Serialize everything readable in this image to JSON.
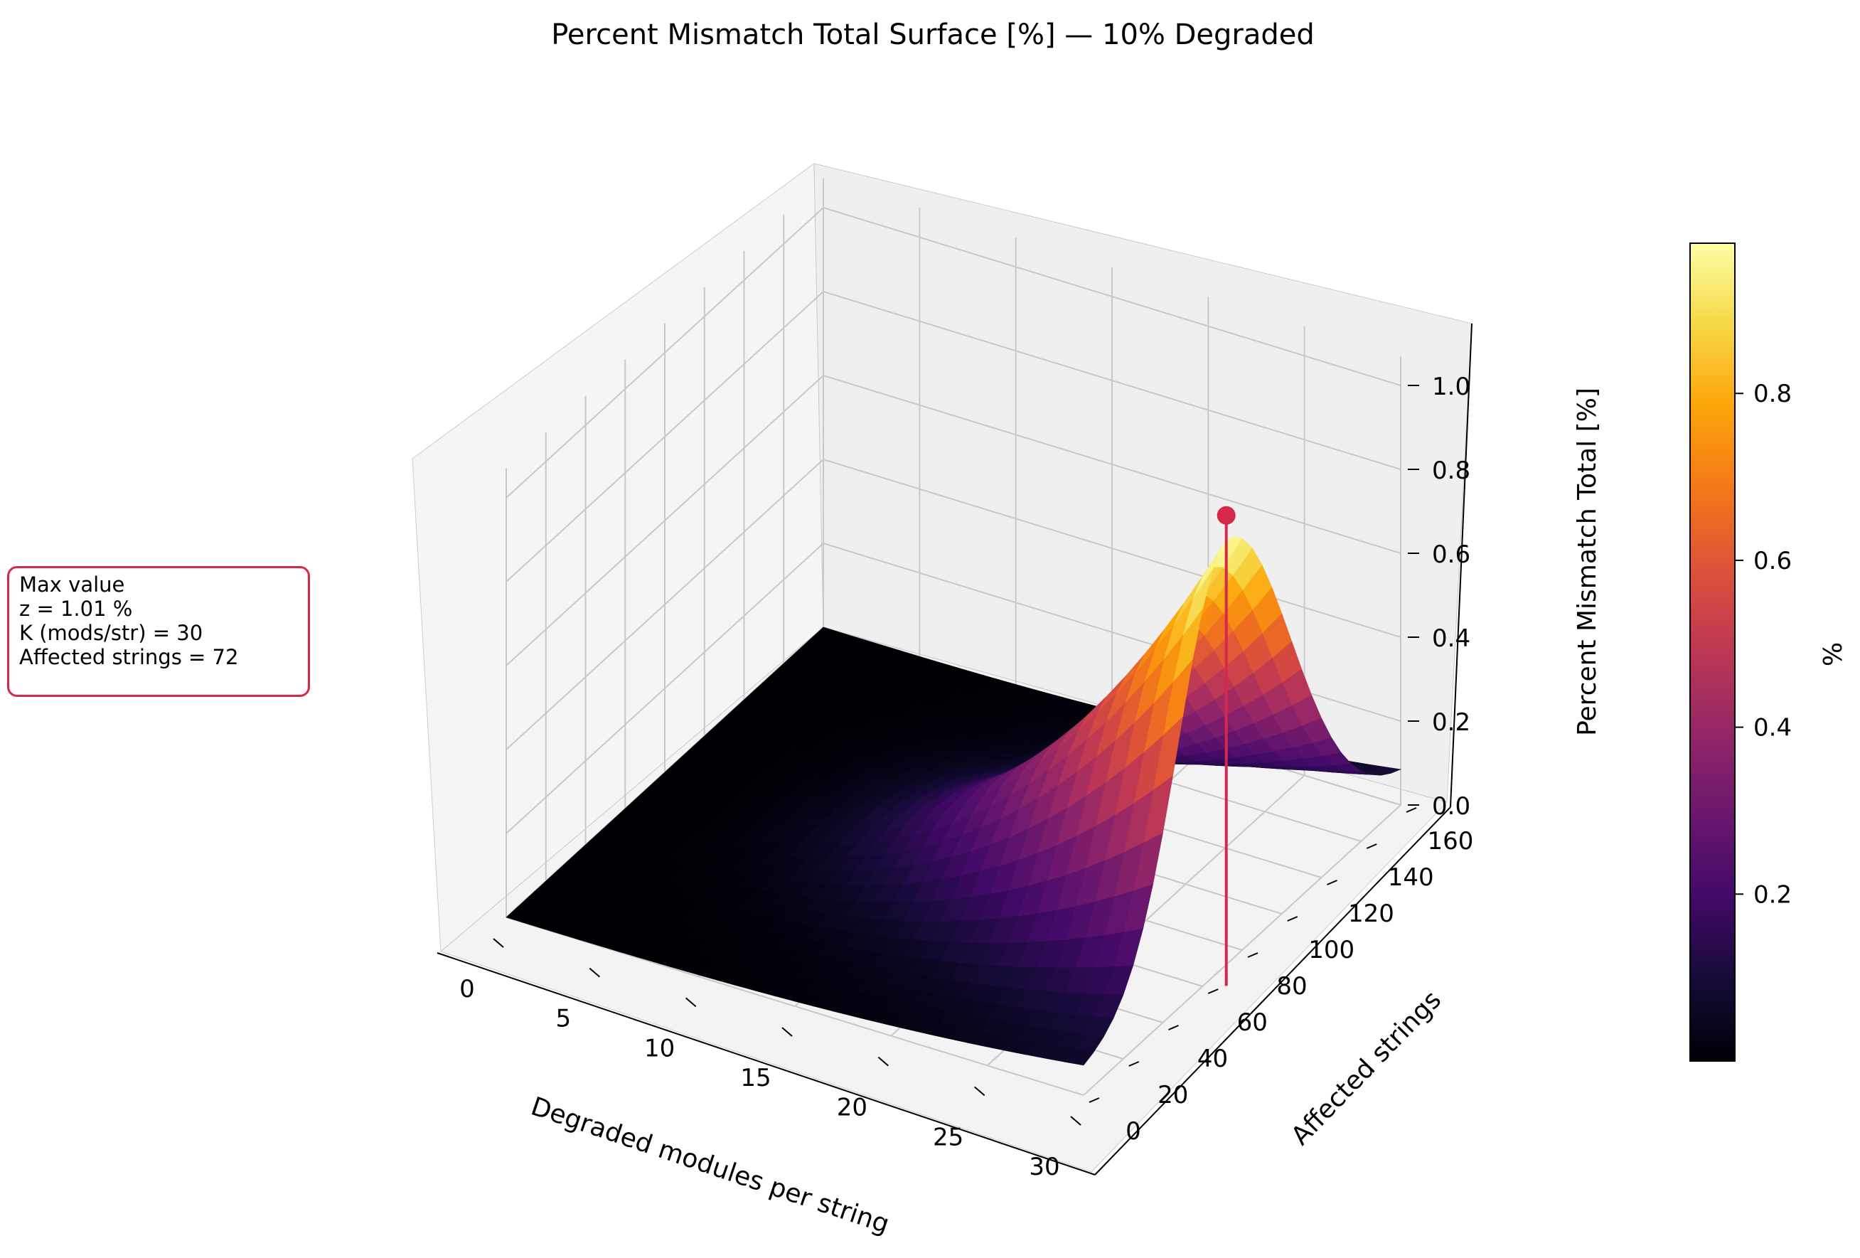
{
  "chart_data": {
    "type": "surface3d",
    "title": "Percent Mismatch Total Surface [%] — 10% Degraded",
    "xlabel": "Degraded modules per string",
    "ylabel": "Affected strings",
    "zlabel": "Percent Mismatch Total [%]",
    "x_range": [
      0,
      30
    ],
    "y_range": [
      0,
      160
    ],
    "zlim": [
      0,
      1.05
    ],
    "x_ticks": [
      "0",
      "5",
      "10",
      "15",
      "20",
      "25",
      "30"
    ],
    "y_ticks": [
      "0",
      "20",
      "40",
      "60",
      "80",
      "100",
      "120",
      "140",
      "160"
    ],
    "z_ticks": [
      "0.0",
      "0.2",
      "0.4",
      "0.6",
      "0.8",
      "1.0"
    ],
    "grid": true,
    "colormap": "inferno",
    "surface": {
      "description_x_samples": [
        0,
        5,
        10,
        15,
        20,
        25,
        30
      ],
      "description_y_samples": [
        0,
        20,
        40,
        60,
        72,
        80,
        100,
        120,
        140,
        160
      ],
      "z_at_x30": [
        0.02,
        0.12,
        0.36,
        0.72,
        1.01,
        0.95,
        0.7,
        0.42,
        0.2,
        0.08
      ]
    },
    "max_point": {
      "x": 30,
      "y": 72,
      "z": 1.01,
      "color": "#d6284b"
    },
    "colorbar": {
      "label": "%",
      "range": [
        0.0,
        0.98
      ],
      "ticks": [
        "0.2",
        "0.4",
        "0.6",
        "0.8"
      ]
    }
  },
  "info_box": {
    "title": "Max value",
    "z_line": "z = 1.01 %",
    "k_line": "K (mods/str) = 30",
    "strings_line": "Affected strings = 72"
  }
}
